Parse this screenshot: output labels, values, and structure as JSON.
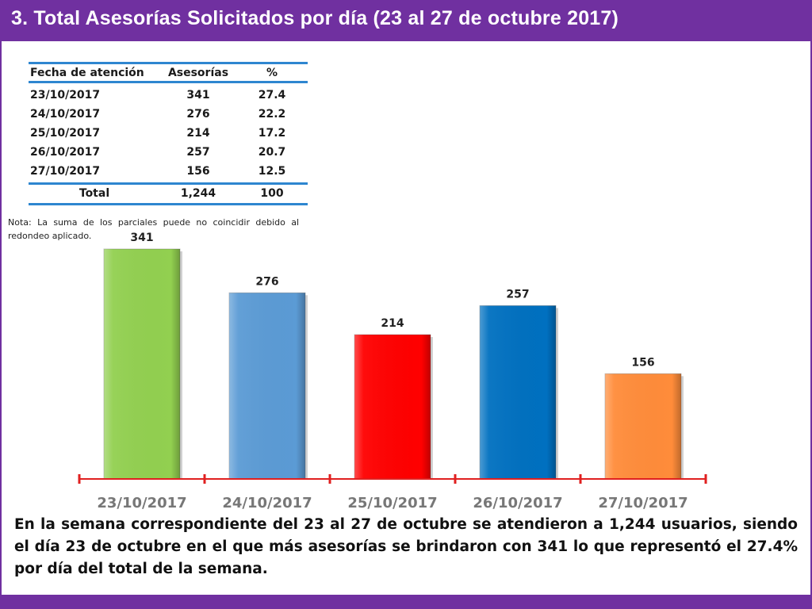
{
  "header": {
    "title": "3.  Total Asesorías Solicitados por día  (23 al 27 de octubre 2017)"
  },
  "table": {
    "headers": [
      "Fecha de atención",
      "Asesorías",
      "%"
    ],
    "rows": [
      [
        "23/10/2017",
        "341",
        "27.4"
      ],
      [
        "24/10/2017",
        "276",
        "22.2"
      ],
      [
        "25/10/2017",
        "214",
        "17.2"
      ],
      [
        "26/10/2017",
        "257",
        "20.7"
      ],
      [
        "27/10/2017",
        "156",
        "12.5"
      ]
    ],
    "total": [
      "Total",
      "1,244",
      "100"
    ]
  },
  "note": "Nota: La suma de los parciales puede no coincidir debido al redondeo aplicado.",
  "chart_data": {
    "type": "bar",
    "categories": [
      "23/10/2017",
      "24/10/2017",
      "25/10/2017",
      "26/10/2017",
      "27/10/2017"
    ],
    "values": [
      341,
      276,
      214,
      257,
      156
    ],
    "colors": [
      "#92d050",
      "#5b9bd5",
      "#ff0000",
      "#0070c0",
      "#ff8c3a"
    ],
    "data_labels": [
      "341",
      "276",
      "214",
      "257",
      "156"
    ],
    "axis_color": "#e02020",
    "grid": false,
    "legend": "none"
  },
  "summary": "En la semana correspondiente del 23 al 27 de octubre se atendieron a 1,244 usuarios, siendo el día 23 de octubre en el que más asesorías se brindaron con 341 lo que representó el 27.4% por día del total de la semana."
}
